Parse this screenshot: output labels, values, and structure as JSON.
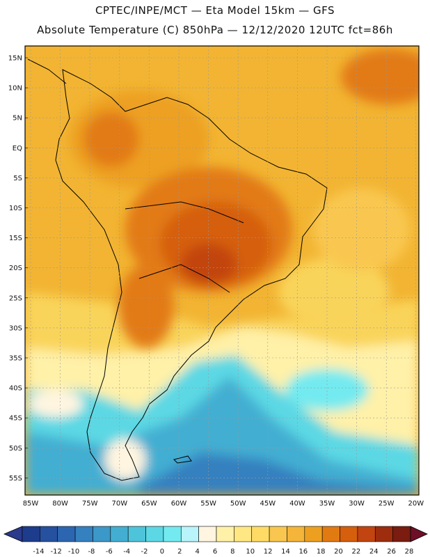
{
  "title_line1": "CPTEC/INPE/MCT —  Eta Model 15km — GFS",
  "title_line2": "Absolute Temperature (C) 850hPa — 12/12/2020 12UTC fct=86h",
  "lat_labels": [
    "15N",
    "10N",
    "5N",
    "EQ",
    "5S",
    "10S",
    "15S",
    "20S",
    "25S",
    "30S",
    "35S",
    "40S",
    "45S",
    "50S",
    "55S"
  ],
  "lon_labels": [
    "85W",
    "80W",
    "75W",
    "70W",
    "65W",
    "60W",
    "55W",
    "50W",
    "45W",
    "40W",
    "35W",
    "30W",
    "25W",
    "20W"
  ],
  "colorbar": {
    "labels": [
      "-14",
      "-12",
      "-10",
      "-8",
      "-6",
      "-4",
      "-2",
      "0",
      "2",
      "4",
      "6",
      "8",
      "10",
      "12",
      "14",
      "16",
      "18",
      "20",
      "22",
      "24",
      "26",
      "28"
    ],
    "colors": [
      "#1e3c8c",
      "#25519f",
      "#2d66b0",
      "#3580bf",
      "#3c98c9",
      "#43aed2",
      "#4ec4da",
      "#5cd8e4",
      "#73eaf0",
      "#b8f4fa",
      "#fff5e0",
      "#fff1a8",
      "#ffe784",
      "#ffdb66",
      "#f9c74f",
      "#f4b53a",
      "#eda020",
      "#e27a12",
      "#d55f0c",
      "#c24410",
      "#9e2d0d",
      "#7a1c10"
    ]
  }
}
